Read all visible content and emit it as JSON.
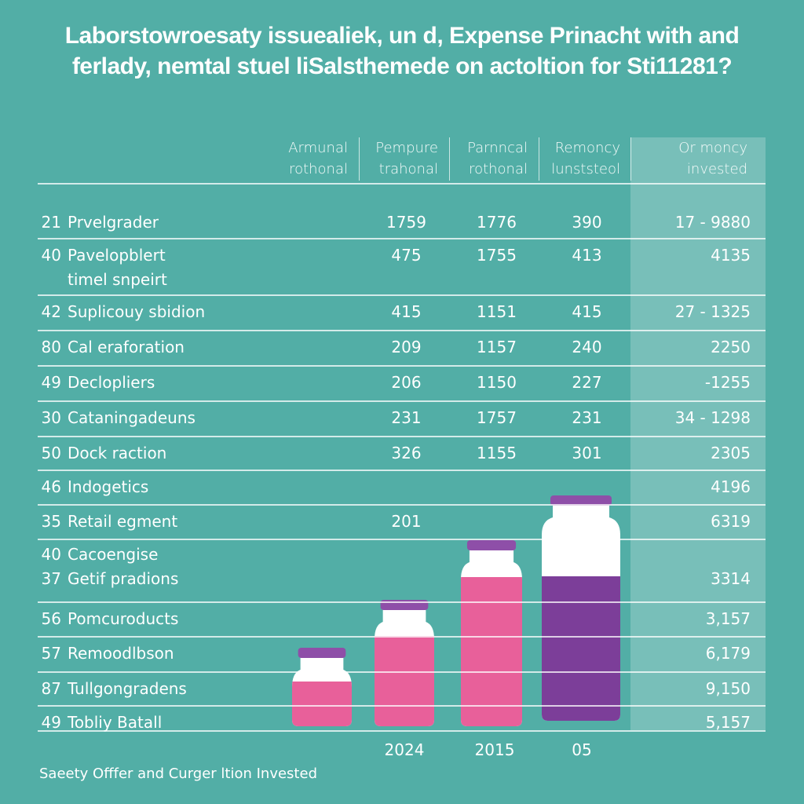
{
  "title": "Laborstowroesaty issuealiek, un d, Expense Prinacht with and ferlady, nemtal stuel liSalsthemede on actoltion for Sti11281?",
  "table": {
    "columns": [
      "Armunal rothonal",
      "Pempure trahonal",
      "Parnncal rothonal",
      "Remoncy lunststeol",
      "Or moncy invested"
    ],
    "rows": [
      [
        "21",
        "Prvelgrader",
        "1759",
        "1776",
        "390",
        "17 - 9880"
      ],
      [
        "40",
        "Pavelopblert\ntimel snpeirt",
        "475",
        "1755",
        "413",
        "4135"
      ],
      [
        "42",
        "Suplicouy sbidion",
        "415",
        "1151",
        "415",
        "27 - 1325"
      ],
      [
        "80",
        "Cal eraforation",
        "209",
        "1157",
        "240",
        "2250"
      ],
      [
        "49",
        "Declopliers",
        "206",
        "1150",
        "227",
        "-1255"
      ],
      [
        "30",
        "Cataningadeuns",
        "231",
        "1757",
        "231",
        "34 - 1298"
      ],
      [
        "50",
        "Dock raction",
        "326",
        "1155",
        "301",
        "2305"
      ],
      [
        "46",
        "Indogetics",
        null,
        null,
        null,
        "4196"
      ],
      [
        "35",
        "Retail egment",
        "201",
        null,
        null,
        "6319"
      ],
      [
        "40\n37",
        "Cacoengise\nGetif pradions",
        null,
        null,
        null,
        "3314"
      ],
      [
        "56",
        "Pomcuroducts",
        null,
        null,
        null,
        "3,157"
      ],
      [
        "57",
        "Remoodlbson",
        null,
        null,
        null,
        "6,179"
      ],
      [
        "87",
        "Tullgongradens",
        null,
        null,
        null,
        "9,150"
      ],
      [
        "49",
        "Tobliy Batall",
        null,
        null,
        null,
        "5,157"
      ]
    ]
  },
  "bottle_labels": [
    "2024",
    "2015",
    "05"
  ],
  "footer": "Saeety Offfer and Curger ltion Invested"
}
